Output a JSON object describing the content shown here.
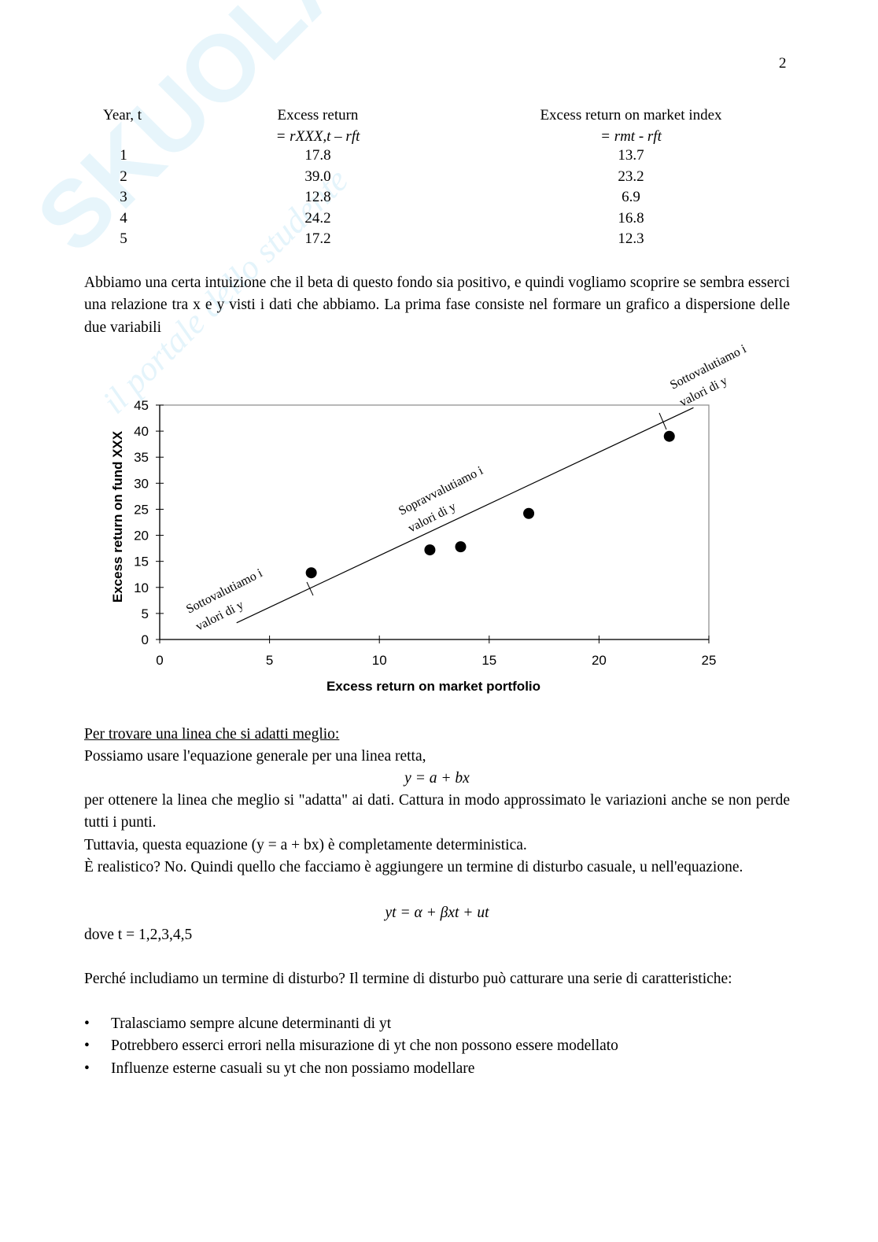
{
  "page_number": "2",
  "watermark": {
    "brand": "Skuola.net",
    "tagline": "il portale dello studente"
  },
  "table": {
    "headers": [
      {
        "line1": "Year, t",
        "line2": ""
      },
      {
        "line1": "Excess return",
        "line2": "= rXXX,t – rft"
      },
      {
        "line1": "Excess return on market index",
        "line2": "= rmt - rft"
      }
    ],
    "rows": [
      [
        "1",
        "17.8",
        "13.7"
      ],
      [
        "2",
        "39.0",
        "23.2"
      ],
      [
        "3",
        "12.8",
        "6.9"
      ],
      [
        "4",
        "24.2",
        "16.8"
      ],
      [
        "5",
        "17.2",
        "12.3"
      ]
    ]
  },
  "intro": "Abbiamo una certa intuizione che il beta di questo fondo sia positivo, e quindi vogliamo scoprire se sembra esserci una relazione tra x e y visti i dati che abbiamo. La prima fase consiste nel formare un grafico a dispersione delle due variabili",
  "chart_data": {
    "type": "scatter",
    "xlabel": "Excess return on market portfolio",
    "ylabel": "Excess return on fund XXX",
    "xlim": [
      0,
      25
    ],
    "ylim": [
      0,
      45
    ],
    "xticks": [
      "0",
      "5",
      "10",
      "15",
      "20",
      "25"
    ],
    "yticks": [
      "0",
      "5",
      "10",
      "15",
      "20",
      "25",
      "30",
      "35",
      "40",
      "45"
    ],
    "grid": false,
    "points": [
      {
        "x": 6.9,
        "y": 12.8
      },
      {
        "x": 12.3,
        "y": 17.2
      },
      {
        "x": 13.7,
        "y": 17.8
      },
      {
        "x": 16.8,
        "y": 24.2
      },
      {
        "x": 23.2,
        "y": 39.0
      }
    ],
    "fit_line": {
      "x1": 3.5,
      "y1": 3.2,
      "x2": 24.3,
      "y2": 44.5
    },
    "annotations": [
      {
        "line1": "Sottovalutiamo    i",
        "line2": "valori di y"
      },
      {
        "line1": "Sopravvalutiamo i",
        "line2": "valori di y"
      },
      {
        "line1": "Sottovalutiamo    i",
        "line2": "valori di y"
      }
    ]
  },
  "section_title": "Per trovare una linea che si adatti meglio:",
  "p1": "Possiamo usare l'equazione generale per una linea retta,",
  "eq1": "y = a + bx",
  "p2": "per ottenere la linea che meglio si \"adatta\" ai dati. Cattura in modo approssimato le variazioni anche se non perde tutti i punti.",
  "p3": "Tuttavia, questa equazione (y = a + bx) è completamente deterministica.",
  "p4": "È realistico? No. Quindi quello che facciamo è aggiungere un termine di disturbo casuale, u nell'equazione.",
  "eq2": "yt = α + βxt + ut",
  "p5": "dove t = 1,2,3,4,5",
  "p6": "Perché includiamo un termine di disturbo? Il termine di disturbo può catturare una serie di caratteristiche:",
  "bullets": [
    "Tralasciamo sempre alcune determinanti di yt",
    "Potrebbero esserci errori nella misurazione di yt che non possono essere modellato",
    "Influenze esterne casuali su yt che non possiamo modellare"
  ]
}
